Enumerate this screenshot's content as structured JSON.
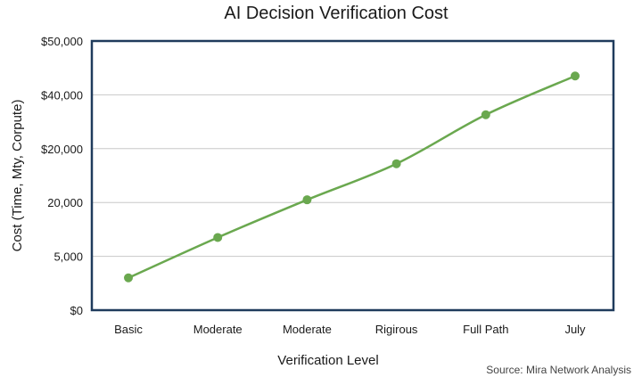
{
  "chart_data": {
    "type": "line",
    "title": "AI Decision Verification Cost",
    "xlabel": "Verification Level",
    "ylabel": "Cost (Time, Mty, Corpute)",
    "categories": [
      "Basic",
      "Moderate",
      "Moderate",
      "Rigirous",
      "Full Path",
      "July"
    ],
    "y_tick_labels": [
      "$0",
      "5,000",
      "20,000",
      "$20,000",
      "$40,000",
      "$50,000"
    ],
    "y_tick_positions": [
      0,
      1,
      2,
      3,
      4,
      5
    ],
    "values": [
      0.6,
      1.35,
      2.05,
      2.72,
      3.63,
      4.35
    ],
    "ylim": [
      0,
      5
    ],
    "grid": true,
    "line_color": "#6aa84f",
    "marker_color": "#6aa84f",
    "frame_color": "#1f3b5c",
    "source": "Source: Mira Network Analysis"
  }
}
